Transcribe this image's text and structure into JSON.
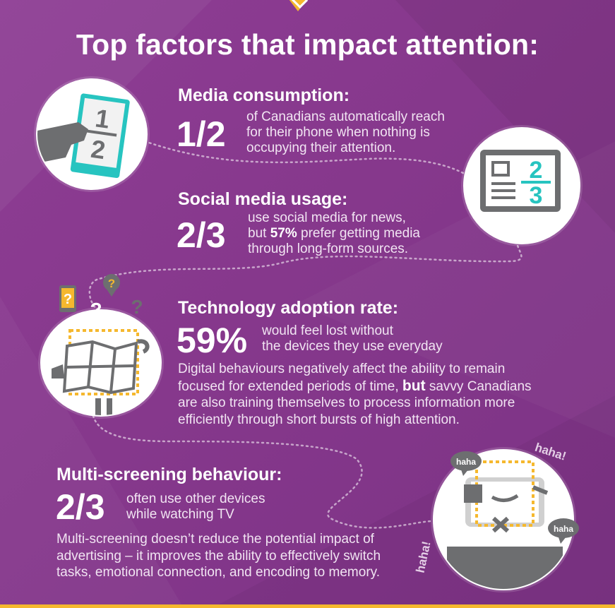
{
  "page": {
    "title": "Top factors that impact attention:"
  },
  "sections": {
    "media": {
      "heading": "Media consumption:",
      "stat": "1/2",
      "desc_lines": [
        "of Canadians automatically reach",
        "for their phone when nothing is",
        "occupying their attention."
      ],
      "icon": "phone-fraction-icon",
      "icon_fraction": [
        "1",
        "2"
      ]
    },
    "social": {
      "heading": "Social media usage:",
      "stat": "2/3",
      "desc_line1": "use social media for news,",
      "desc_line2_pre": "but ",
      "desc_line2_bold": "57%",
      "desc_line2_post": " prefer getting media",
      "desc_line3": "through long-form sources.",
      "icon": "newspaper-icon",
      "icon_fraction": [
        "2",
        "3"
      ]
    },
    "tech": {
      "heading": "Technology adoption rate:",
      "stat": "59%",
      "desc_lines": [
        "would feel lost without",
        "the devices they use everyday"
      ],
      "para_line1": "Digital behaviours negatively affect the ability to remain",
      "para_line2_pre": "focused for extended periods of time, ",
      "para_line2_bold": "but",
      "para_line2_post": " savvy Canadians",
      "para_line3": "are also training themselves to process information more",
      "para_line4": "efficiently through short bursts of high attention.",
      "icon": "confused-map-icon"
    },
    "multi": {
      "heading": "Multi-screening behaviour:",
      "stat": "2/3",
      "desc_lines": [
        "often use other devices",
        "while watching TV"
      ],
      "para_lines": [
        "Multi-screening doesn’t reduce the potential impact of",
        "advertising – it improves the ability to effectively switch",
        "tasks, emotional connection, and encoding to memory."
      ],
      "icon": "laughing-tv-icon",
      "haha": "haha",
      "haha_excl": "haha!"
    }
  },
  "colors": {
    "background": "#873a8e",
    "accent_teal": "#27c4c0",
    "accent_yellow": "#f5b82e",
    "icon_gray": "#6d6e70"
  }
}
